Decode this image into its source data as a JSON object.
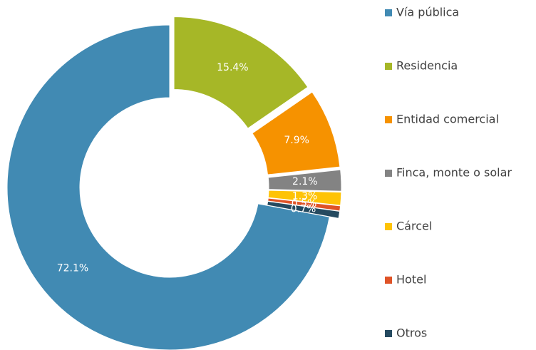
{
  "chart_data": {
    "type": "donut",
    "categories": [
      "Vía pública",
      "Residencia",
      "Entidad comercial",
      "Finca, monte o solar",
      "Cárcel",
      "Hotel",
      "Otros"
    ],
    "values": [
      72.1,
      15.4,
      7.9,
      2.1,
      1.3,
      0.5,
      0.7
    ],
    "value_labels": [
      "72.1%",
      "15.4%",
      "7.9%",
      "2.1%",
      "1.3%",
      "0.5%",
      "0.7%"
    ],
    "colors": [
      "#418ab3",
      "#a6b727",
      "#f69200",
      "#838383",
      "#fec306",
      "#df5327",
      "#254a60"
    ],
    "legend": "right"
  }
}
